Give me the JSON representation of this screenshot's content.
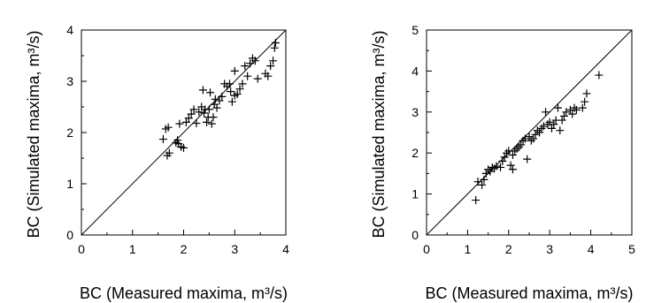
{
  "chart_data": [
    {
      "type": "scatter",
      "xlabel": "BC (Measured maxima, m³/s)",
      "ylabel": "BC (Simulated maxima, m³/s)",
      "xlim": [
        0,
        4
      ],
      "ylim": [
        0,
        4
      ],
      "xticks": [
        "0",
        "1",
        "2",
        "3",
        "4"
      ],
      "yticks": [
        "0",
        "1",
        "2",
        "3",
        "4"
      ],
      "reference_line": "1:1",
      "marker": "plus",
      "points": [
        [
          1.6,
          1.87
        ],
        [
          1.65,
          2.07
        ],
        [
          1.7,
          2.1
        ],
        [
          1.68,
          1.55
        ],
        [
          1.72,
          1.6
        ],
        [
          1.85,
          1.8
        ],
        [
          1.88,
          1.85
        ],
        [
          1.9,
          1.78
        ],
        [
          1.92,
          2.17
        ],
        [
          1.95,
          1.72
        ],
        [
          2.0,
          1.7
        ],
        [
          2.05,
          2.2
        ],
        [
          2.1,
          2.28
        ],
        [
          2.15,
          2.36
        ],
        [
          2.2,
          2.45
        ],
        [
          2.25,
          2.18
        ],
        [
          2.3,
          2.4
        ],
        [
          2.35,
          2.5
        ],
        [
          2.38,
          2.83
        ],
        [
          2.4,
          2.38
        ],
        [
          2.42,
          2.45
        ],
        [
          2.45,
          2.2
        ],
        [
          2.48,
          2.3
        ],
        [
          2.5,
          2.45
        ],
        [
          2.52,
          2.78
        ],
        [
          2.55,
          2.17
        ],
        [
          2.58,
          2.3
        ],
        [
          2.6,
          2.55
        ],
        [
          2.62,
          2.65
        ],
        [
          2.65,
          2.48
        ],
        [
          2.7,
          2.62
        ],
        [
          2.75,
          2.7
        ],
        [
          2.8,
          2.95
        ],
        [
          2.85,
          2.9
        ],
        [
          2.9,
          2.95
        ],
        [
          2.92,
          2.8
        ],
        [
          2.95,
          2.6
        ],
        [
          3.0,
          2.72
        ],
        [
          3.0,
          3.2
        ],
        [
          3.05,
          2.75
        ],
        [
          3.1,
          2.85
        ],
        [
          3.15,
          2.95
        ],
        [
          3.2,
          3.3
        ],
        [
          3.25,
          3.1
        ],
        [
          3.3,
          3.35
        ],
        [
          3.35,
          3.45
        ],
        [
          3.4,
          3.4
        ],
        [
          3.45,
          3.05
        ],
        [
          3.6,
          3.15
        ],
        [
          3.65,
          3.1
        ],
        [
          3.7,
          3.3
        ],
        [
          3.75,
          3.4
        ],
        [
          3.78,
          3.65
        ],
        [
          3.8,
          3.75
        ]
      ]
    },
    {
      "type": "scatter",
      "xlabel": "BC (Measured maxima, m³/s)",
      "ylabel": "BC (Simulated maxima, m³/s)",
      "xlim": [
        0,
        5
      ],
      "ylim": [
        0,
        5
      ],
      "xticks": [
        "0",
        "1",
        "2",
        "3",
        "4",
        "5"
      ],
      "yticks": [
        "0",
        "1",
        "2",
        "3",
        "4",
        "5"
      ],
      "reference_line": "1:1",
      "marker": "plus",
      "points": [
        [
          1.2,
          0.85
        ],
        [
          1.25,
          1.3
        ],
        [
          1.35,
          1.22
        ],
        [
          1.4,
          1.35
        ],
        [
          1.45,
          1.5
        ],
        [
          1.5,
          1.6
        ],
        [
          1.55,
          1.55
        ],
        [
          1.6,
          1.65
        ],
        [
          1.65,
          1.62
        ],
        [
          1.7,
          1.68
        ],
        [
          1.8,
          1.65
        ],
        [
          1.85,
          1.8
        ],
        [
          1.9,
          1.9
        ],
        [
          1.95,
          2.0
        ],
        [
          2.0,
          2.05
        ],
        [
          2.05,
          1.7
        ],
        [
          2.1,
          1.6
        ],
        [
          2.1,
          1.95
        ],
        [
          2.15,
          2.05
        ],
        [
          2.2,
          2.1
        ],
        [
          2.25,
          2.15
        ],
        [
          2.3,
          2.2
        ],
        [
          2.35,
          2.3
        ],
        [
          2.4,
          2.35
        ],
        [
          2.45,
          1.85
        ],
        [
          2.5,
          2.4
        ],
        [
          2.55,
          2.3
        ],
        [
          2.6,
          2.35
        ],
        [
          2.65,
          2.45
        ],
        [
          2.7,
          2.55
        ],
        [
          2.75,
          2.5
        ],
        [
          2.8,
          2.6
        ],
        [
          2.85,
          2.65
        ],
        [
          2.9,
          3.0
        ],
        [
          2.95,
          2.7
        ],
        [
          3.0,
          2.75
        ],
        [
          3.05,
          2.6
        ],
        [
          3.1,
          2.7
        ],
        [
          3.15,
          2.8
        ],
        [
          3.2,
          3.1
        ],
        [
          3.25,
          2.55
        ],
        [
          3.3,
          2.8
        ],
        [
          3.35,
          2.9
        ],
        [
          3.4,
          3.0
        ],
        [
          3.5,
          3.05
        ],
        [
          3.55,
          2.95
        ],
        [
          3.6,
          3.1
        ],
        [
          3.65,
          3.05
        ],
        [
          3.8,
          3.1
        ],
        [
          3.85,
          3.25
        ],
        [
          3.9,
          3.45
        ],
        [
          4.2,
          3.9
        ]
      ]
    }
  ]
}
